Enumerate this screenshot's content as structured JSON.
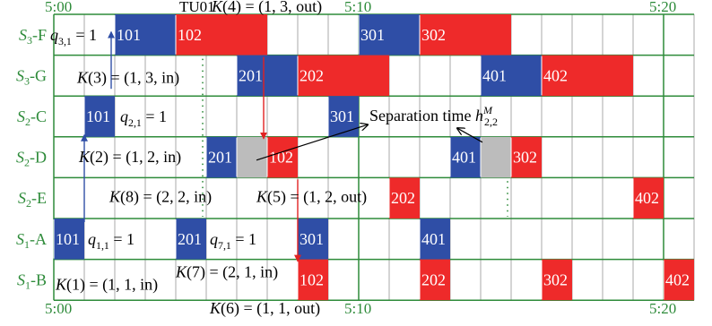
{
  "colors": {
    "blue": "#2f4ea6",
    "red": "#ee2a2a",
    "gray": "#bcbcbc",
    "grid_major": "#2e8b3a",
    "grid_minor": "#a8a8a8",
    "label": "#2e8b3a",
    "arrow_red": "#e02222",
    "arrow_blue": "#2f4ea6"
  },
  "time_labels": {
    "top": [
      "5:00",
      "5:10",
      "5:20"
    ],
    "bottom": [
      "5:00",
      "5:10",
      "5:20"
    ]
  },
  "top_note": {
    "tu": "TU01",
    "k": "K(4) = (1, 3, out)"
  },
  "bottom_note": "K(6) = (1, 1, out)",
  "rows": [
    {
      "main": "S",
      "sub": "3",
      "suffix": "-F"
    },
    {
      "main": "S",
      "sub": "3",
      "suffix": "-G"
    },
    {
      "main": "S",
      "sub": "2",
      "suffix": "-C"
    },
    {
      "main": "S",
      "sub": "2",
      "suffix": "-D"
    },
    {
      "main": "S",
      "sub": "2",
      "suffix": "-E"
    },
    {
      "main": "S",
      "sub": "1",
      "suffix": "-A"
    },
    {
      "main": "S",
      "sub": "1",
      "suffix": "-B"
    }
  ],
  "blocks": [
    {
      "row": 0,
      "col": 2,
      "span": 2,
      "color": "blue",
      "label": "101"
    },
    {
      "row": 0,
      "col": 4,
      "span": 3,
      "color": "red",
      "label": "102"
    },
    {
      "row": 0,
      "col": 10,
      "span": 2,
      "color": "blue",
      "label": "301"
    },
    {
      "row": 0,
      "col": 12,
      "span": 3,
      "color": "red",
      "label": "302"
    },
    {
      "row": 1,
      "col": 6,
      "span": 2,
      "color": "blue",
      "label": "201"
    },
    {
      "row": 1,
      "col": 8,
      "span": 3,
      "color": "red",
      "label": "202"
    },
    {
      "row": 1,
      "col": 14,
      "span": 2,
      "color": "blue",
      "label": "401"
    },
    {
      "row": 1,
      "col": 16,
      "span": 3,
      "color": "red",
      "label": "402"
    },
    {
      "row": 2,
      "col": 1,
      "span": 1,
      "color": "blue",
      "label": "101"
    },
    {
      "row": 2,
      "col": 9,
      "span": 1,
      "color": "blue",
      "label": "301"
    },
    {
      "row": 3,
      "col": 5,
      "span": 1,
      "color": "blue",
      "label": "201"
    },
    {
      "row": 3,
      "col": 6,
      "span": 1,
      "color": "gray",
      "label": ""
    },
    {
      "row": 3,
      "col": 7,
      "span": 1,
      "color": "red",
      "label": "102"
    },
    {
      "row": 3,
      "col": 13,
      "span": 1,
      "color": "blue",
      "label": "401"
    },
    {
      "row": 3,
      "col": 14,
      "span": 1,
      "color": "gray",
      "label": ""
    },
    {
      "row": 3,
      "col": 15,
      "span": 1,
      "color": "red",
      "label": "302"
    },
    {
      "row": 4,
      "col": 11,
      "span": 1,
      "color": "red",
      "label": "202"
    },
    {
      "row": 4,
      "col": 19,
      "span": 1,
      "color": "red",
      "label": "402"
    },
    {
      "row": 5,
      "col": 0,
      "span": 1,
      "color": "blue",
      "label": "101"
    },
    {
      "row": 5,
      "col": 4,
      "span": 1,
      "color": "blue",
      "label": "201"
    },
    {
      "row": 5,
      "col": 8,
      "span": 1,
      "color": "blue",
      "label": "301"
    },
    {
      "row": 5,
      "col": 12,
      "span": 1,
      "color": "blue",
      "label": "401"
    },
    {
      "row": 6,
      "col": 8,
      "span": 1,
      "color": "red",
      "label": "102"
    },
    {
      "row": 6,
      "col": 12,
      "span": 1,
      "color": "red",
      "label": "202"
    },
    {
      "row": 6,
      "col": 16,
      "span": 1,
      "color": "red",
      "label": "302"
    },
    {
      "row": 6,
      "col": 20,
      "span": 1,
      "color": "red",
      "label": "402"
    }
  ],
  "annotations": {
    "q31": {
      "base": "q",
      "sub": "3,1",
      "rest": " = 1"
    },
    "k3": "K(3) = (1, 3, in)",
    "q21": {
      "base": "q",
      "sub": "2,1",
      "rest": " = 1"
    },
    "separation": {
      "text": "Separation time ",
      "base": "h",
      "sub": "2,2",
      "sup": "M"
    },
    "k2": "K(2) = (1, 2, in)",
    "k8": "K(8) = (2, 2, in)",
    "k5": "K(5) = (1, 2, out)",
    "q11": {
      "base": "q",
      "sub": "1,1",
      "rest": " = 1"
    },
    "q71": {
      "base": "q",
      "sub": "7,1",
      "rest": " = 1"
    },
    "k1": "K(1) = (1, 1, in)",
    "k7": "K(7) = (2, 1, in)"
  }
}
